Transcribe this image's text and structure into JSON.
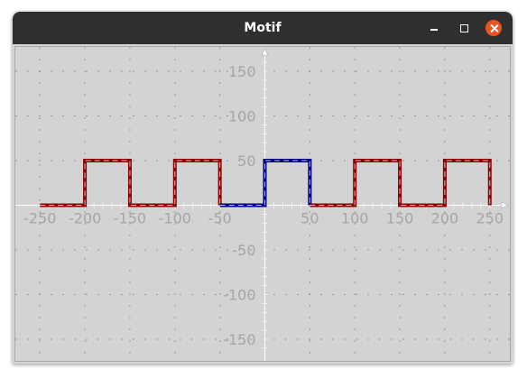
{
  "window": {
    "title": "Motif"
  },
  "chart_data": {
    "type": "line",
    "title": "",
    "xlabel": "",
    "ylabel": "",
    "xlim": [
      -250,
      260
    ],
    "ylim": [
      -165,
      170
    ],
    "grid": true,
    "x_ticks": [
      -250,
      -200,
      -150,
      -100,
      -50,
      50,
      100,
      150,
      200,
      250
    ],
    "x_tick_labels": [
      "-250",
      "-200",
      "-150",
      "-100",
      "-50",
      "50",
      "100",
      "150",
      "200",
      "250"
    ],
    "y_ticks": [
      150,
      100,
      50,
      -50,
      -100,
      -150
    ],
    "y_tick_labels": [
      "150",
      "100",
      "50",
      "-50",
      "-100",
      "-150"
    ],
    "series": [
      {
        "color": "#8b0000",
        "x": [
          -250,
          -200,
          -200,
          -150,
          -150,
          -100,
          -100,
          -50,
          -50
        ],
        "y": [
          0,
          0,
          50,
          50,
          0,
          0,
          50,
          50,
          0
        ]
      },
      {
        "color": "#000080",
        "x": [
          -50,
          0,
          0,
          50,
          50
        ],
        "y": [
          0,
          0,
          50,
          50,
          0
        ]
      },
      {
        "color": "#8b0000",
        "x": [
          50,
          100,
          100,
          150,
          150,
          200,
          200,
          250,
          250
        ],
        "y": [
          0,
          0,
          50,
          50,
          0,
          0,
          50,
          50,
          0
        ]
      }
    ],
    "colors": {
      "axis": "#ffffff",
      "grid": "#888888",
      "tick_label": "#a5a5a5"
    }
  }
}
